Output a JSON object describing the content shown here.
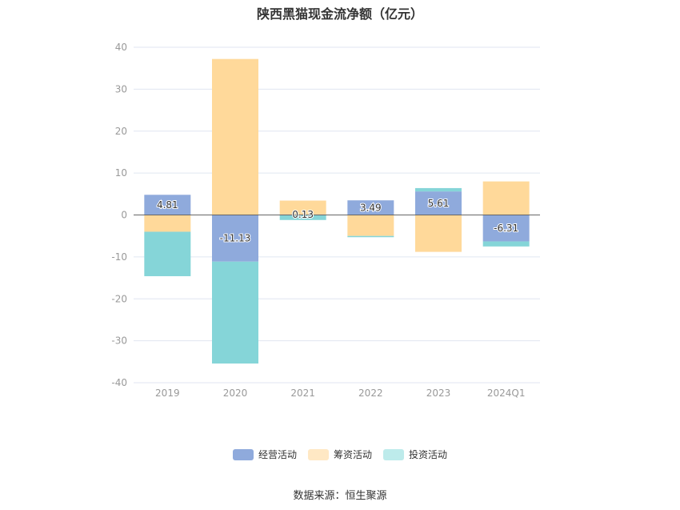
{
  "chart_data": {
    "type": "bar",
    "stacked": true,
    "title": "陕西黑猫现金流净额（亿元）",
    "categories": [
      "2019",
      "2020",
      "2021",
      "2022",
      "2023",
      "2024Q1"
    ],
    "y_ticks": [
      "40",
      "30",
      "20",
      "10",
      "0",
      "-10",
      "-20",
      "-30",
      "-40"
    ],
    "ylim": [
      -40,
      40
    ],
    "grid": true,
    "legend_position": "bottom-center",
    "series": [
      {
        "name": "经营活动",
        "color": "#8faadc",
        "values": [
          4.81,
          -11.13,
          0.13,
          3.49,
          5.61,
          -6.31
        ]
      },
      {
        "name": "筹资活动",
        "color": "#ffd99a",
        "values": [
          -4.0,
          37.2,
          3.3,
          -5.0,
          -8.8,
          8.0
        ]
      },
      {
        "name": "投资活动",
        "color": "#85d5d8",
        "values": [
          -10.6,
          -24.3,
          -1.2,
          -0.3,
          0.8,
          -1.2
        ]
      }
    ],
    "data_labels": [
      "4.81",
      "-11.13",
      "0.13",
      "3.49",
      "5.61",
      "-6.31"
    ]
  },
  "legend": [
    {
      "label": "经营活动",
      "color": "#8faadc"
    },
    {
      "label": "筹资活动",
      "color": "#ffe8c4"
    },
    {
      "label": "投资活动",
      "color": "#bdebeb"
    }
  ],
  "source": "数据来源：恒生聚源"
}
